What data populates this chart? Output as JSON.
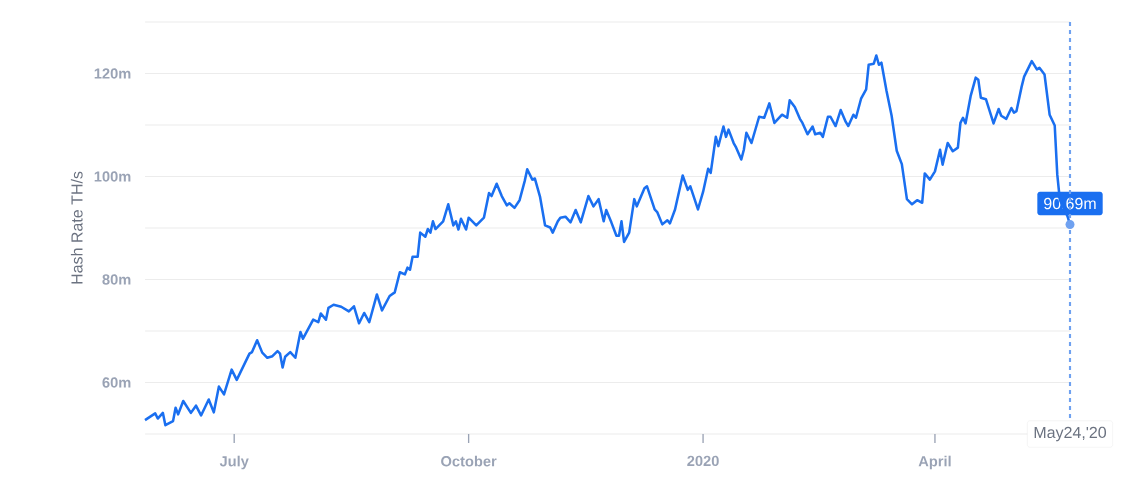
{
  "chart_data": {
    "type": "line",
    "ylabel": "Hash Rate TH/s",
    "grid": "y",
    "x": [
      "2019-05-27",
      "2019-05-31",
      "2019-06-01",
      "2019-06-03",
      "2019-06-04",
      "2019-06-07",
      "2019-06-08",
      "2019-06-09",
      "2019-06-11",
      "2019-06-14",
      "2019-06-16",
      "2019-06-18",
      "2019-06-21",
      "2019-06-23",
      "2019-06-25",
      "2019-06-27",
      "2019-06-30",
      "2019-07-02",
      "2019-07-07",
      "2019-07-08",
      "2019-07-10",
      "2019-07-12",
      "2019-07-14",
      "2019-07-16",
      "2019-07-18",
      "2019-07-19",
      "2019-07-20",
      "2019-07-21",
      "2019-07-23",
      "2019-07-25",
      "2019-07-27",
      "2019-07-28",
      "2019-08-01",
      "2019-08-03",
      "2019-08-04",
      "2019-08-06",
      "2019-08-07",
      "2019-08-09",
      "2019-08-12",
      "2019-08-15",
      "2019-08-17",
      "2019-08-19",
      "2019-08-21",
      "2019-08-23",
      "2019-08-26",
      "2019-08-28",
      "2019-08-31",
      "2019-09-02",
      "2019-09-04",
      "2019-09-06",
      "2019-09-07",
      "2019-09-08",
      "2019-09-09",
      "2019-09-11",
      "2019-09-12",
      "2019-09-14",
      "2019-09-15",
      "2019-09-16",
      "2019-09-17",
      "2019-09-18",
      "2019-09-21",
      "2019-09-23",
      "2019-09-25",
      "2019-09-26",
      "2019-09-27",
      "2019-09-28",
      "2019-09-30",
      "2019-10-01",
      "2019-10-04",
      "2019-10-07",
      "2019-10-09",
      "2019-10-10",
      "2019-10-12",
      "2019-10-14",
      "2019-10-16",
      "2019-10-17",
      "2019-10-19",
      "2019-10-21",
      "2019-10-23",
      "2019-10-24",
      "2019-10-26",
      "2019-10-27",
      "2019-10-29",
      "2019-10-31",
      "2019-11-02",
      "2019-11-03",
      "2019-11-05",
      "2019-11-06",
      "2019-11-08",
      "2019-11-10",
      "2019-11-12",
      "2019-11-14",
      "2019-11-17",
      "2019-11-19",
      "2019-11-21",
      "2019-11-23",
      "2019-11-24",
      "2019-11-26",
      "2019-11-28",
      "2019-11-29",
      "2019-11-30",
      "2019-12-01",
      "2019-12-03",
      "2019-12-05",
      "2019-12-06",
      "2019-12-09",
      "2019-12-10",
      "2019-12-13",
      "2019-12-14",
      "2019-12-16",
      "2019-12-18",
      "2019-12-19",
      "2019-12-21",
      "2019-12-24",
      "2019-12-26",
      "2019-12-27",
      "2019-12-30",
      "2020-01-01",
      "2020-01-03",
      "2020-01-04",
      "2020-01-06",
      "2020-01-07",
      "2020-01-09",
      "2020-01-10",
      "2020-01-11",
      "2020-01-13",
      "2020-01-14",
      "2020-01-16",
      "2020-01-17",
      "2020-01-18",
      "2020-01-20",
      "2020-01-23",
      "2020-01-25",
      "2020-01-27",
      "2020-01-29",
      "2020-02-01",
      "2020-02-03",
      "2020-02-04",
      "2020-02-06",
      "2020-02-08",
      "2020-02-09",
      "2020-02-11",
      "2020-02-13",
      "2020-02-14",
      "2020-02-16",
      "2020-02-17",
      "2020-02-19",
      "2020-02-20",
      "2020-02-22",
      "2020-02-24",
      "2020-02-26",
      "2020-02-27",
      "2020-02-29",
      "2020-03-01",
      "2020-03-03",
      "2020-03-05",
      "2020-03-06",
      "2020-03-08",
      "2020-03-09",
      "2020-03-10",
      "2020-03-11",
      "2020-03-13",
      "2020-03-15",
      "2020-03-17",
      "2020-03-19",
      "2020-03-21",
      "2020-03-23",
      "2020-03-25",
      "2020-03-27",
      "2020-03-28",
      "2020-03-30",
      "2020-04-01",
      "2020-04-03",
      "2020-04-04",
      "2020-04-06",
      "2020-04-08",
      "2020-04-10",
      "2020-04-11",
      "2020-04-12",
      "2020-04-13",
      "2020-04-15",
      "2020-04-17",
      "2020-04-18",
      "2020-04-19",
      "2020-04-21",
      "2020-04-24",
      "2020-04-26",
      "2020-04-27",
      "2020-04-29",
      "2020-05-01",
      "2020-05-02",
      "2020-05-03",
      "2020-05-05",
      "2020-05-06",
      "2020-05-09",
      "2020-05-11",
      "2020-05-12",
      "2020-05-14",
      "2020-05-16",
      "2020-05-18",
      "2020-05-19",
      "2020-05-20",
      "2020-05-23",
      "2020-05-24"
    ],
    "series": [
      {
        "color": "#1a6ff0",
        "values": [
          52.7,
          54.0,
          53.0,
          54.1,
          51.7,
          52.5,
          55.1,
          53.8,
          56.4,
          54.1,
          55.5,
          53.6,
          56.7,
          54.2,
          59.2,
          57.7,
          62.5,
          60.5,
          65.6,
          65.9,
          68.2,
          65.8,
          64.8,
          65.1,
          66.1,
          65.6,
          62.9,
          65.0,
          65.9,
          64.8,
          69.8,
          68.5,
          72.2,
          71.7,
          73.4,
          72.2,
          74.5,
          75.1,
          74.7,
          73.8,
          74.8,
          71.5,
          73.5,
          71.7,
          77.1,
          74.0,
          76.8,
          77.5,
          81.4,
          81.0,
          82.3,
          81.9,
          84.4,
          84.4,
          89.1,
          88.3,
          89.8,
          89.1,
          91.3,
          89.8,
          91.3,
          94.6,
          90.5,
          91.3,
          89.7,
          91.8,
          89.7,
          92.0,
          90.5,
          92.0,
          96.8,
          96.2,
          98.6,
          96.2,
          94.4,
          94.8,
          93.9,
          95.4,
          99.1,
          101.4,
          99.4,
          99.6,
          96.1,
          90.5,
          90.1,
          89.1,
          91.3,
          92.0,
          92.2,
          91.1,
          93.5,
          91.1,
          96.2,
          94.2,
          95.6,
          91.3,
          93.5,
          91.1,
          88.5,
          88.5,
          91.3,
          87.3,
          89.1,
          95.6,
          94.2,
          97.7,
          98.1,
          93.6,
          93.1,
          90.7,
          91.5,
          90.9,
          93.6,
          100.2,
          97.4,
          98.1,
          93.6,
          97.0,
          101.5,
          100.7,
          107.7,
          105.9,
          109.7,
          107.7,
          109.1,
          106.5,
          105.6,
          103.3,
          105.2,
          108.5,
          106.5,
          111.6,
          111.4,
          114.2,
          110.4,
          112.0,
          111.4,
          114.8,
          113.5,
          111.2,
          110.4,
          108.2,
          109.7,
          108.2,
          108.5,
          107.7,
          111.6,
          111.6,
          109.8,
          112.9,
          110.6,
          109.8,
          112.0,
          111.4,
          115.1,
          116.9,
          121.7,
          121.9,
          123.5,
          121.7,
          122.1,
          116.6,
          111.8,
          105.0,
          102.4,
          95.6,
          94.6,
          95.4,
          94.9,
          100.6,
          99.4,
          101.0,
          105.2,
          102.3,
          106.5,
          104.9,
          105.6,
          110.4,
          111.4,
          110.3,
          115.6,
          119.2,
          118.8,
          115.3,
          115.0,
          110.3,
          113.1,
          111.8,
          111.2,
          113.3,
          112.4,
          112.7,
          117.4,
          119.4,
          122.4,
          120.8,
          121.1,
          119.8,
          112.0,
          109.9,
          100.4,
          95.5,
          92.3,
          90.69
        ]
      }
    ],
    "xlim": [
      "2019-05-27",
      "2020-05-24"
    ],
    "xticks": [
      {
        "value": "2019-07-01",
        "label": "July"
      },
      {
        "value": "2019-10-01",
        "label": "October"
      },
      {
        "value": "2020-01-01",
        "label": "2020"
      },
      {
        "value": "2020-04-01",
        "label": "April"
      }
    ],
    "ylim": [
      50,
      130
    ],
    "yticks": [
      {
        "value": 50,
        "label": null
      },
      {
        "value": 60,
        "label": "60m"
      },
      {
        "value": 70,
        "label": null
      },
      {
        "value": 80,
        "label": "80m"
      },
      {
        "value": 90,
        "label": null
      },
      {
        "value": 100,
        "label": "100m"
      },
      {
        "value": 110,
        "label": null
      },
      {
        "value": 120,
        "label": "120m"
      },
      {
        "value": 130,
        "label": null
      }
    ],
    "ref_lines": [
      {
        "axis": "x",
        "value": "2020-05-24",
        "label": "May24,'20",
        "color": "#6fa1f0",
        "line_style": "dashed"
      }
    ],
    "annotations": [
      {
        "text": "90.69m",
        "x": "2020-05-24",
        "y": 90.69
      }
    ]
  }
}
